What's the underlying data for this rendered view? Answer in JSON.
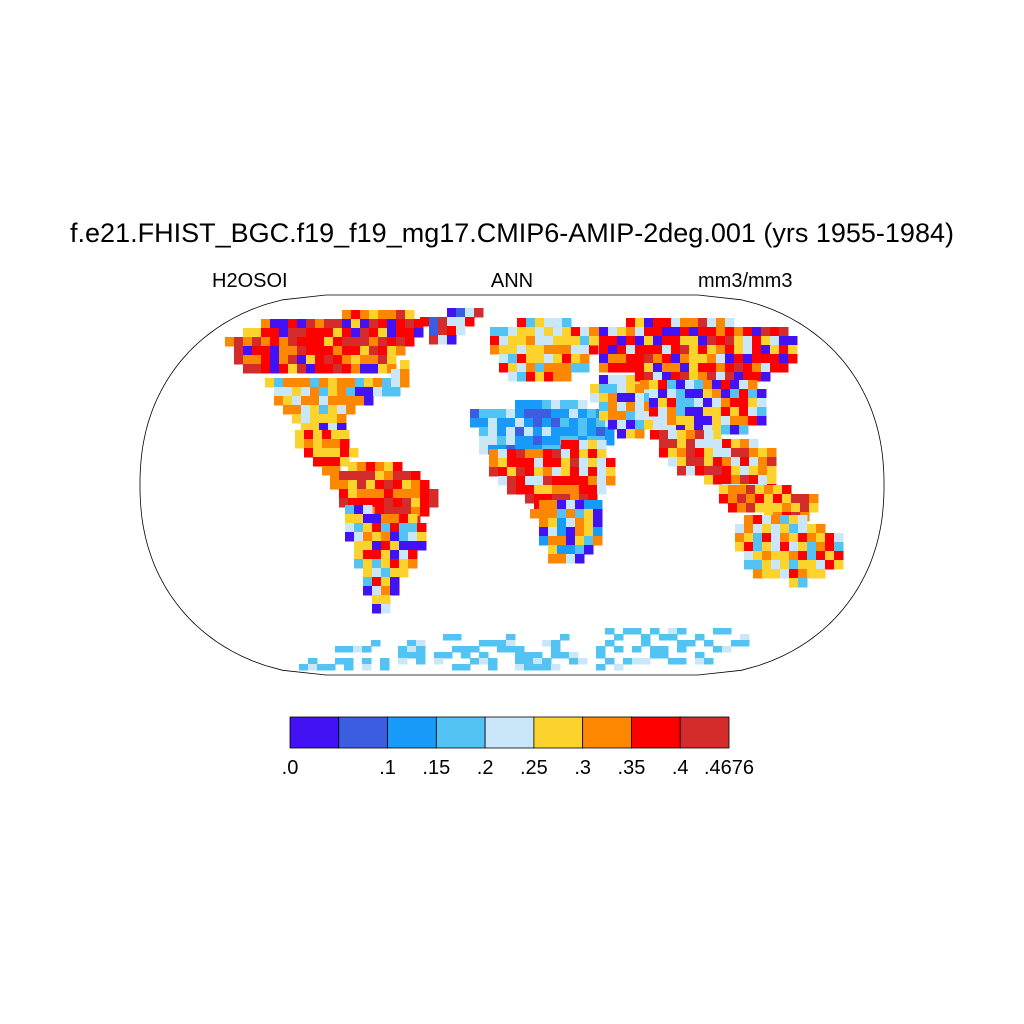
{
  "title": "f.e21.FHIST_BGC.f19_f19_mg17.CMIP6-AMIP-2deg.001 (yrs 1955-1984)",
  "left_label": "H2OSOI",
  "center_label": "ANN",
  "right_label": "mm3/mm3",
  "projection": "Robinson",
  "colorbar": {
    "colors": [
      "#4212f4",
      "#3b5ee0",
      "#189bf8",
      "#52c3f3",
      "#c9e7f9",
      "#fcd22c",
      "#fe8702",
      "#fe0000",
      "#d42b2b"
    ],
    "tick_labels": [
      ".0",
      "",
      ".1",
      ".15",
      ".2",
      ".25",
      ".3",
      ".35",
      ".4",
      ".4676"
    ]
  }
}
